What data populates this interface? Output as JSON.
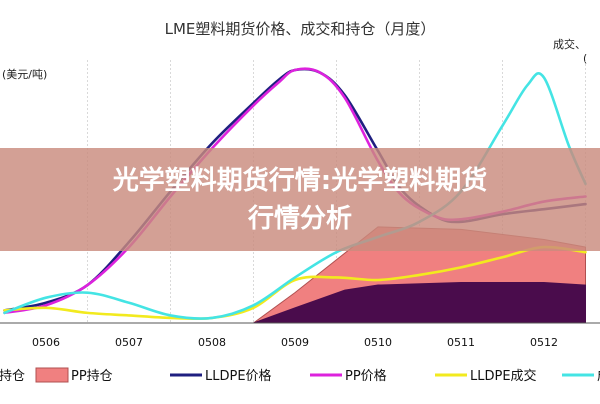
{
  "chart_data": {
    "type": "line",
    "title": "LME塑料期货价格、成交和持仓（月度）",
    "ylabel_left": "(美元/吨)",
    "ylabel_right": "成交、",
    "ylabel_right2": "(",
    "categories": [
      "0506",
      "0507",
      "0508",
      "0509",
      "0510",
      "0511",
      "0512"
    ],
    "x": [
      0,
      1,
      2,
      3,
      4,
      5,
      6
    ],
    "grid": true,
    "series": [
      {
        "name": "LLDPE价格",
        "kind": "line",
        "color": "#1f1f80",
        "x": [
          -0.5,
          0,
          0.5,
          1,
          1.5,
          2,
          2.5,
          2.8,
          3,
          3.3,
          3.6,
          4,
          4.3,
          4.7,
          5,
          5.5,
          6,
          6.5
        ],
        "values": [
          0.05,
          0.08,
          0.15,
          0.32,
          0.52,
          0.71,
          0.87,
          0.96,
          1.0,
          0.99,
          0.9,
          0.68,
          0.52,
          0.42,
          0.4,
          0.43,
          0.45,
          0.47
        ]
      },
      {
        "name": "PP价格",
        "kind": "line",
        "color": "#dd22dd",
        "x": [
          -0.5,
          0,
          0.5,
          1,
          1.5,
          2,
          2.5,
          2.8,
          3,
          3.3,
          3.6,
          4,
          4.3,
          4.7,
          5,
          5.5,
          6,
          6.5
        ],
        "values": [
          0.04,
          0.07,
          0.15,
          0.3,
          0.5,
          0.69,
          0.86,
          0.95,
          1.0,
          0.99,
          0.89,
          0.64,
          0.5,
          0.42,
          0.41,
          0.44,
          0.48,
          0.5
        ]
      },
      {
        "name": "LLDPE成交",
        "kind": "line",
        "color": "#f2ea1e",
        "x": [
          -0.5,
          0,
          0.5,
          1,
          1.5,
          2,
          2.5,
          3,
          3.5,
          4,
          4.5,
          5,
          5.5,
          6,
          6.5
        ],
        "values": [
          0.05,
          0.06,
          0.04,
          0.03,
          0.02,
          0.02,
          0.06,
          0.17,
          0.18,
          0.17,
          0.19,
          0.22,
          0.26,
          0.3,
          0.28
        ]
      },
      {
        "name": "PP成交",
        "kind": "line",
        "color": "#44e4e4",
        "x": [
          -0.5,
          0,
          0.5,
          1,
          1.5,
          2,
          2.5,
          3,
          3.5,
          4,
          4.5,
          5,
          5.5,
          5.8,
          6,
          6.3,
          6.5
        ],
        "values": [
          0.04,
          0.1,
          0.12,
          0.08,
          0.03,
          0.02,
          0.07,
          0.18,
          0.28,
          0.34,
          0.4,
          0.52,
          0.78,
          0.94,
          0.97,
          0.7,
          0.55
        ]
      },
      {
        "name": "PP持仓",
        "kind": "area",
        "color": "#f08080",
        "x": [
          2.5,
          3,
          4,
          5,
          6,
          6.5
        ],
        "values": [
          0.0,
          0.12,
          0.38,
          0.37,
          0.33,
          0.3
        ]
      },
      {
        "name": "LLDPE持仓",
        "kind": "area",
        "color": "#4a0c4c",
        "x": [
          2.5,
          3,
          3.6,
          4,
          5,
          6,
          6.5
        ],
        "values": [
          0.0,
          0.06,
          0.13,
          0.15,
          0.16,
          0.16,
          0.15
        ]
      }
    ],
    "legend": {
      "placement": "bottom",
      "items": [
        {
          "label": "持仓",
          "swatch": "line",
          "color": "#5a1a5a"
        },
        {
          "label": "PP持仓",
          "swatch": "box",
          "color": "#f08080"
        },
        {
          "label": "LLDPE价格",
          "swatch": "line",
          "color": "#1f1f80"
        },
        {
          "label": "PP价格",
          "swatch": "line",
          "color": "#dd22dd"
        },
        {
          "label": "LLDPE成交",
          "swatch": "line",
          "color": "#f2ea1e"
        },
        {
          "label": "成交",
          "swatch": "line",
          "color": "#44e4e4"
        }
      ]
    }
  },
  "overlay": {
    "line1": "光学塑料期货行情:光学塑料期货",
    "line2": "行情分析",
    "band_color": "#c98b7e"
  }
}
